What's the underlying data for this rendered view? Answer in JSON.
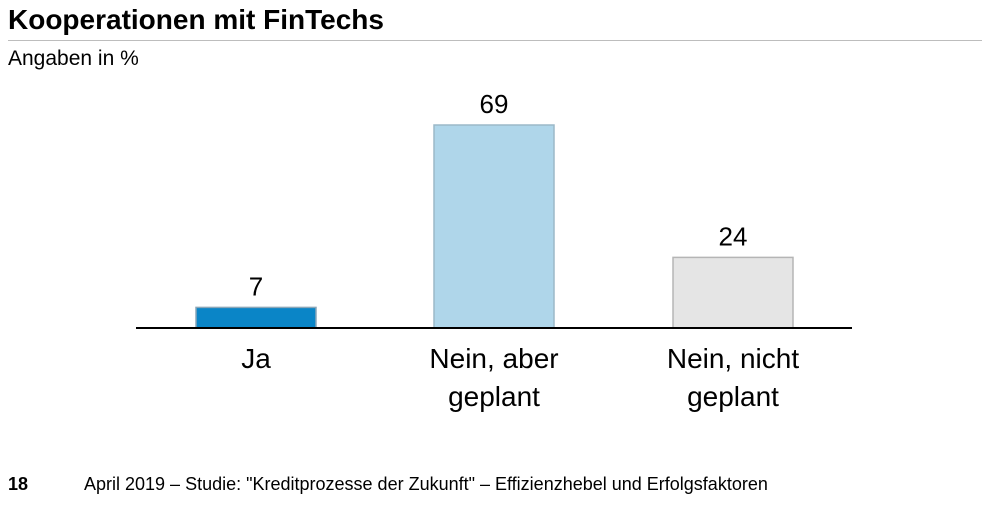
{
  "page": {
    "title": "Kooperationen mit FinTechs",
    "subtitle": "Angaben in %",
    "footer_page_number": "18",
    "footer_text": "April 2019 – Studie: \"Kreditprozesse der Zukunft\"  – Effizienzhebel und Erfolgsfaktoren"
  },
  "chart_data": {
    "type": "bar",
    "title": "Kooperationen mit FinTechs",
    "subtitle": "Angaben in %",
    "categories": [
      [
        "Ja"
      ],
      [
        "Nein, aber",
        "geplant"
      ],
      [
        "Nein, nicht",
        "geplant"
      ]
    ],
    "values": [
      7,
      69,
      24
    ],
    "colors": [
      "#0a85c7",
      "#afd6ea",
      "#e5e5e5"
    ],
    "border_colors": [
      "#8aa6b8",
      "#9cb8c8",
      "#b5b5b5"
    ],
    "ylim": [
      0,
      69
    ],
    "grid": false,
    "legend": "none",
    "data_labels": true
  }
}
